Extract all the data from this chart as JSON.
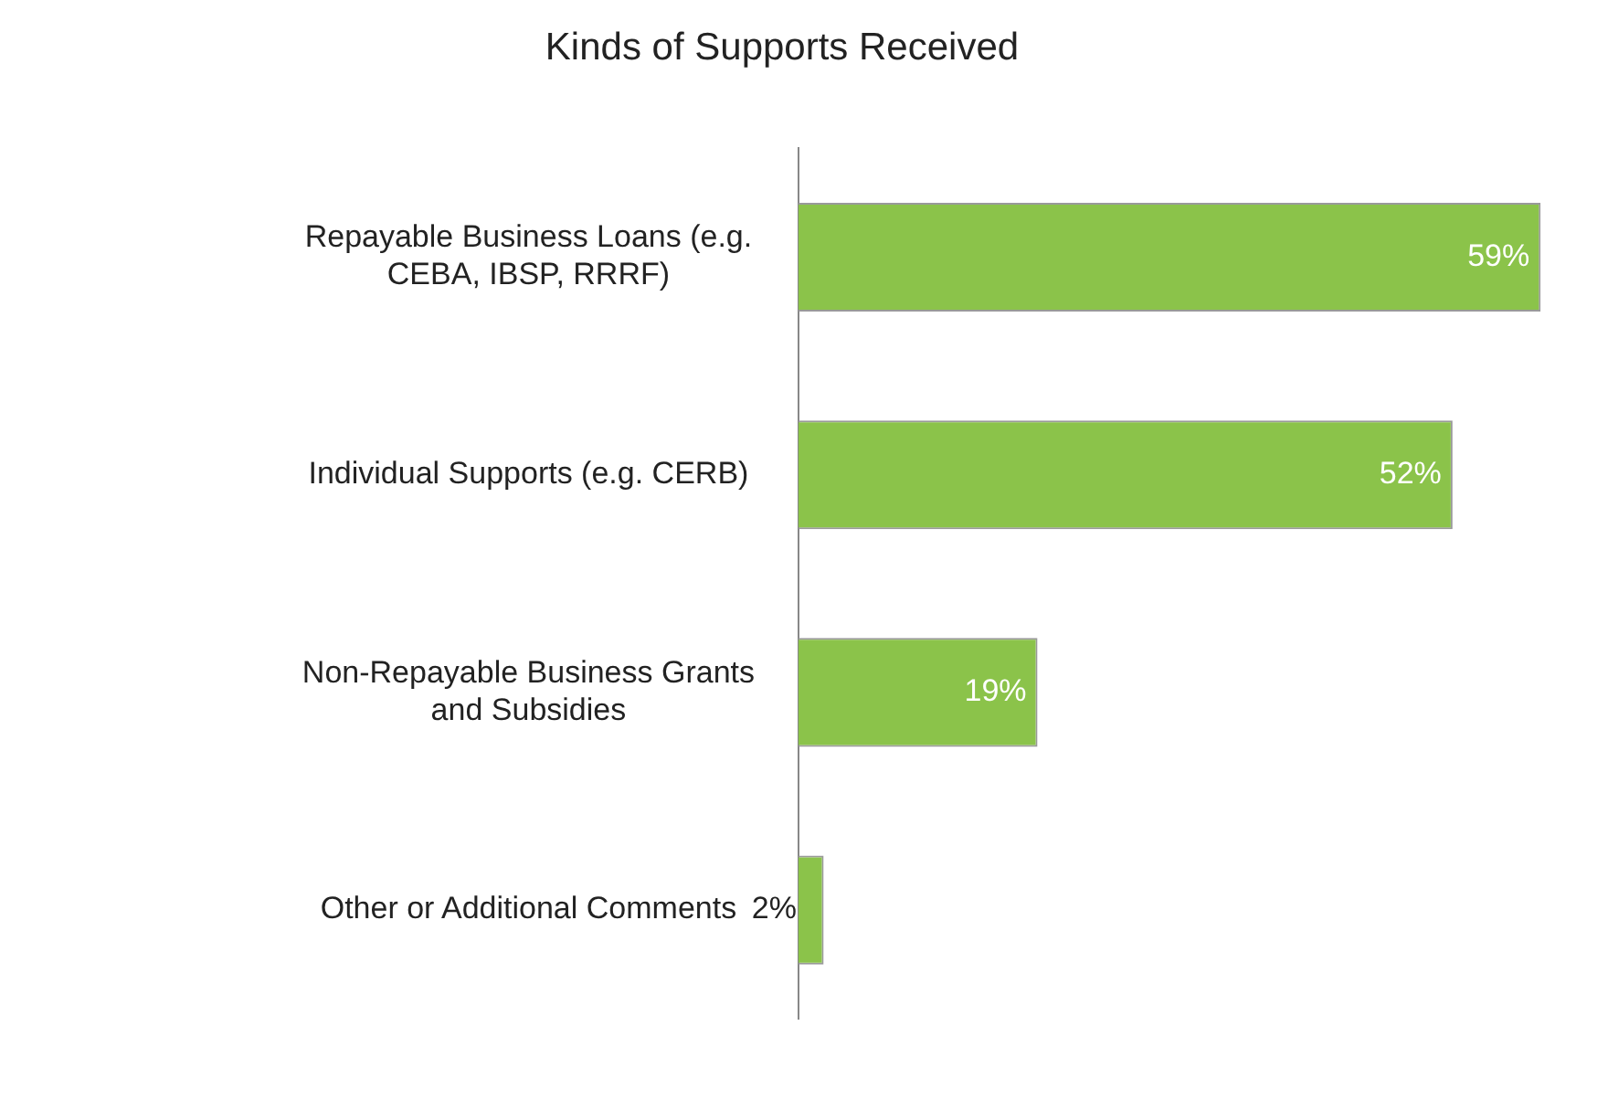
{
  "chart_data": {
    "type": "bar",
    "orientation": "horizontal",
    "title": "Kinds of Supports Received",
    "categories": [
      "Repayable Business Loans (e.g. CEBA, IBSP, RRRF)",
      "Individual Supports (e.g. CERB)",
      "Non-Repayable Business Grants and Subsidies",
      "Other or Additional Comments"
    ],
    "values": [
      59,
      52,
      19,
      2
    ],
    "value_labels": [
      "59%",
      "52%",
      "19%",
      "2%"
    ],
    "color": "#8bc34a",
    "tick_labels": "y",
    "grid": false,
    "legend": false
  }
}
